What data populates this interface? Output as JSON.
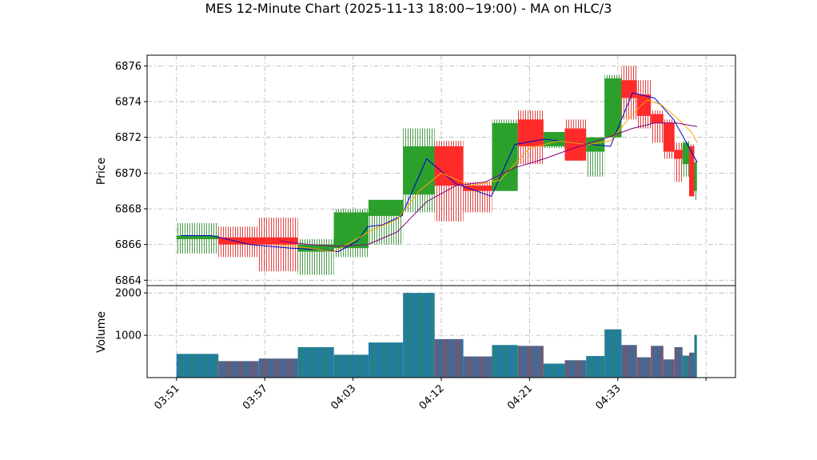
{
  "chart_data": {
    "type": "candlestick",
    "title": "MES 12-Minute Chart (2025-11-13 18:00~19:00) - MA on HLC/3",
    "price_panel": {
      "ylabel": "Price",
      "ylim": [
        6863.7,
        6876.6
      ],
      "yticks": [
        6864,
        6866,
        6868,
        6870,
        6872,
        6874,
        6876
      ],
      "grid": true
    },
    "volume_panel": {
      "ylabel": "Volume",
      "ylim": [
        0,
        2000
      ],
      "yticks": [
        1000,
        2000
      ],
      "grid": true
    },
    "xlabels": [
      {
        "i": 0,
        "label": "03:51"
      },
      {
        "i": 6,
        "label": "03:57"
      },
      {
        "i": 12,
        "label": "04:03"
      },
      {
        "i": 18,
        "label": "04:12"
      },
      {
        "i": 24,
        "label": "04:21"
      },
      {
        "i": 30,
        "label": "04:33"
      },
      {
        "i": 36,
        "label": ""
      }
    ],
    "x_range": [
      -2,
      38
    ],
    "candles": [
      {
        "x": 0.0,
        "w": 2.85,
        "o": 6866.3,
        "h": 6867.2,
        "l": 6865.5,
        "c": 6866.5,
        "v": 560
      },
      {
        "x": 2.85,
        "w": 2.75,
        "o": 6866.4,
        "h": 6867.0,
        "l": 6865.3,
        "c": 6866.0,
        "v": 390
      },
      {
        "x": 5.6,
        "w": 2.65,
        "o": 6866.4,
        "h": 6867.5,
        "l": 6864.5,
        "c": 6866.0,
        "v": 450
      },
      {
        "x": 8.25,
        "w": 2.45,
        "o": 6865.6,
        "h": 6866.3,
        "l": 6864.3,
        "c": 6866.0,
        "v": 720
      },
      {
        "x": 10.7,
        "w": 2.35,
        "o": 6865.8,
        "h": 6868.0,
        "l": 6865.3,
        "c": 6867.8,
        "v": 540
      },
      {
        "x": 13.05,
        "w": 2.35,
        "o": 6867.6,
        "h": 6868.5,
        "l": 6866.0,
        "c": 6868.5,
        "v": 830
      },
      {
        "x": 15.4,
        "w": 2.15,
        "o": 6868.8,
        "h": 6872.5,
        "l": 6867.8,
        "c": 6871.5,
        "v": 2000
      },
      {
        "x": 17.55,
        "w": 1.95,
        "o": 6871.5,
        "h": 6871.8,
        "l": 6867.3,
        "c": 6869.3,
        "v": 910
      },
      {
        "x": 19.5,
        "w": 1.95,
        "o": 6869.3,
        "h": 6869.5,
        "l": 6867.8,
        "c": 6869.0,
        "v": 500
      },
      {
        "x": 21.45,
        "w": 1.75,
        "o": 6869.0,
        "h": 6873.0,
        "l": 6869.0,
        "c": 6872.8,
        "v": 770
      },
      {
        "x": 23.2,
        "w": 1.75,
        "o": 6873.0,
        "h": 6873.5,
        "l": 6870.5,
        "c": 6871.5,
        "v": 750
      },
      {
        "x": 24.95,
        "w": 1.45,
        "o": 6871.5,
        "h": 6872.3,
        "l": 6871.4,
        "c": 6872.3,
        "v": 330
      },
      {
        "x": 26.4,
        "w": 1.45,
        "o": 6872.5,
        "h": 6873.0,
        "l": 6870.7,
        "c": 6870.7,
        "v": 410
      },
      {
        "x": 27.85,
        "w": 1.25,
        "o": 6871.2,
        "h": 6872.0,
        "l": 6869.8,
        "c": 6872.0,
        "v": 510
      },
      {
        "x": 29.1,
        "w": 1.15,
        "o": 6872.0,
        "h": 6875.5,
        "l": 6872.0,
        "c": 6875.3,
        "v": 1140
      },
      {
        "x": 30.25,
        "w": 1.05,
        "o": 6875.2,
        "h": 6876.0,
        "l": 6873.0,
        "c": 6874.2,
        "v": 770
      },
      {
        "x": 31.3,
        "w": 0.95,
        "o": 6874.4,
        "h": 6875.2,
        "l": 6872.5,
        "c": 6873.2,
        "v": 480
      },
      {
        "x": 32.25,
        "w": 0.85,
        "o": 6873.3,
        "h": 6873.5,
        "l": 6871.7,
        "c": 6872.8,
        "v": 750
      },
      {
        "x": 33.1,
        "w": 0.75,
        "o": 6872.8,
        "h": 6873.0,
        "l": 6870.8,
        "c": 6871.2,
        "v": 430
      },
      {
        "x": 33.85,
        "w": 0.55,
        "o": 6871.3,
        "h": 6871.7,
        "l": 6869.5,
        "c": 6870.8,
        "v": 720
      },
      {
        "x": 34.4,
        "w": 0.45,
        "o": 6870.5,
        "h": 6871.8,
        "l": 6869.8,
        "c": 6871.7,
        "v": 520
      },
      {
        "x": 34.85,
        "w": 0.35,
        "o": 6871.5,
        "h": 6871.6,
        "l": 6868.7,
        "c": 6868.7,
        "v": 590
      },
      {
        "x": 35.2,
        "w": 0.18,
        "o": 6869.0,
        "h": 6870.8,
        "l": 6868.5,
        "c": 6870.6,
        "v": 1010
      }
    ],
    "series": [
      {
        "color": "#0000cc",
        "width": 1,
        "x": [
          0.3,
          2.4,
          5.0,
          7.7,
          10.0,
          11.0,
          12.3,
          13.0,
          14.0,
          15.3,
          17.0,
          19.0,
          21.4,
          23.0,
          25.0,
          27.0,
          29.5,
          31.0,
          32.5,
          33.8,
          35.4
        ],
        "y": [
          6866.5,
          6866.5,
          6866.0,
          6865.8,
          6865.7,
          6865.6,
          6866.2,
          6867.0,
          6867.1,
          6867.6,
          6870.8,
          6869.4,
          6868.7,
          6871.6,
          6871.9,
          6871.7,
          6871.5,
          6874.5,
          6874.2,
          6873.0,
          6870.6
        ]
      },
      {
        "color": "#ffa500",
        "width": 1,
        "x": [
          7.0,
          9.0,
          10.7,
          12.0,
          13.5,
          15.0,
          16.5,
          18.0,
          20.0,
          22.0,
          24.0,
          26.0,
          28.0,
          29.5,
          31.0,
          32.0,
          33.0,
          34.0,
          35.0,
          35.4
        ],
        "y": [
          6866.0,
          6865.8,
          6865.6,
          6866.2,
          6866.9,
          6867.4,
          6869.0,
          6870.0,
          6869.3,
          6869.6,
          6871.4,
          6871.8,
          6871.6,
          6871.8,
          6873.3,
          6874.1,
          6873.8,
          6873.1,
          6872.3,
          6871.7
        ]
      },
      {
        "color": "#800080",
        "width": 1,
        "x": [
          7.0,
          9.0,
          11.0,
          13.0,
          15.0,
          17.0,
          19.0,
          21.0,
          23.0,
          25.0,
          27.0,
          29.0,
          31.0,
          32.5,
          34.0,
          35.4
        ],
        "y": [
          6866.2,
          6866.0,
          6865.9,
          6866.0,
          6866.7,
          6868.4,
          6869.3,
          6869.5,
          6870.3,
          6870.8,
          6871.4,
          6871.9,
          6872.5,
          6872.8,
          6872.8,
          6872.6
        ]
      }
    ],
    "colors": {
      "up": "#2ca02c",
      "down": "#ff2a2a",
      "wick_up": "#4a9a4a",
      "wick_down": "#e04040",
      "volume_fill": "#1f77b4",
      "volume_up_stripe": "#2e8b57",
      "volume_down_stripe": "#c0392b",
      "grid": "#b0b0b0"
    }
  }
}
